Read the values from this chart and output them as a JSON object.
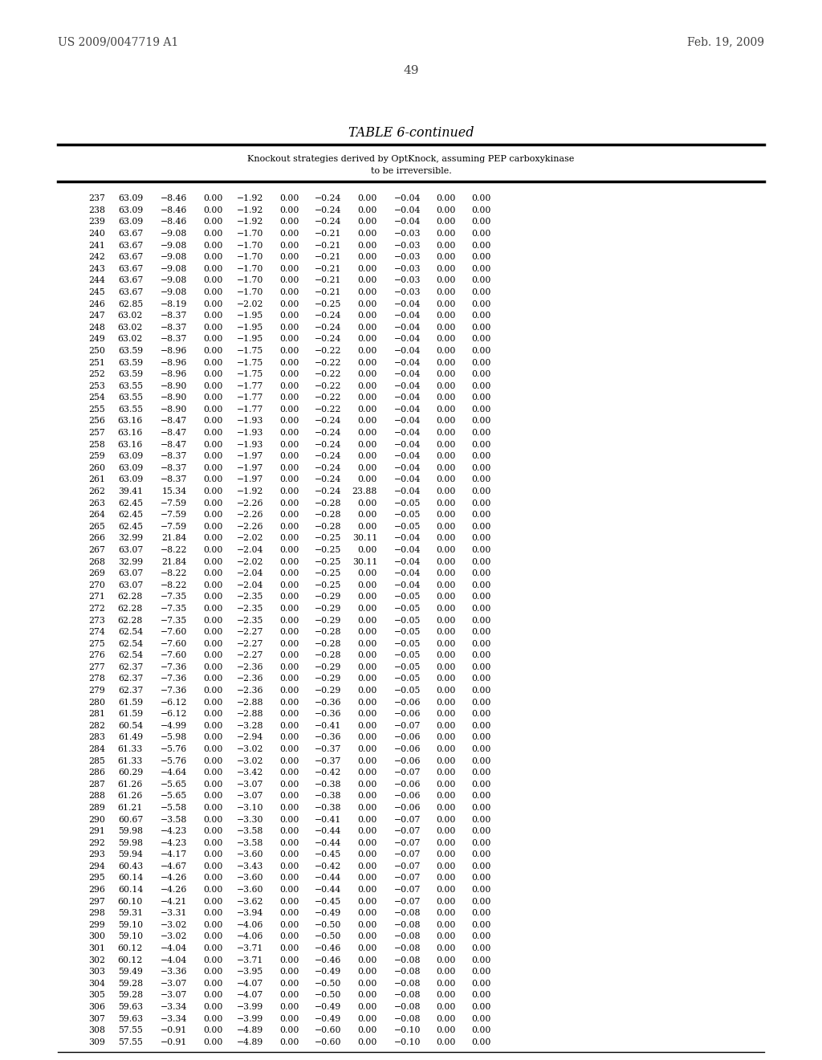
{
  "title": "TABLE 6-continued",
  "subtitle_line1": "Knockout strategies derived by OptKnock, assuming PEP carboxykinase",
  "subtitle_line2": "to be irreversible.",
  "page_number": "49",
  "patent_number": "US 2009/0047719 A1",
  "patent_date": "Feb. 19, 2009",
  "rows": [
    [
      237,
      63.09,
      -8.46,
      0.0,
      -1.92,
      0.0,
      -0.24,
      0.0,
      -0.04,
      0.0,
      0.0
    ],
    [
      238,
      63.09,
      -8.46,
      0.0,
      -1.92,
      0.0,
      -0.24,
      0.0,
      -0.04,
      0.0,
      0.0
    ],
    [
      239,
      63.09,
      -8.46,
      0.0,
      -1.92,
      0.0,
      -0.24,
      0.0,
      -0.04,
      0.0,
      0.0
    ],
    [
      240,
      63.67,
      -9.08,
      0.0,
      -1.7,
      0.0,
      -0.21,
      0.0,
      -0.03,
      0.0,
      0.0
    ],
    [
      241,
      63.67,
      -9.08,
      0.0,
      -1.7,
      0.0,
      -0.21,
      0.0,
      -0.03,
      0.0,
      0.0
    ],
    [
      242,
      63.67,
      -9.08,
      0.0,
      -1.7,
      0.0,
      -0.21,
      0.0,
      -0.03,
      0.0,
      0.0
    ],
    [
      243,
      63.67,
      -9.08,
      0.0,
      -1.7,
      0.0,
      -0.21,
      0.0,
      -0.03,
      0.0,
      0.0
    ],
    [
      244,
      63.67,
      -9.08,
      0.0,
      -1.7,
      0.0,
      -0.21,
      0.0,
      -0.03,
      0.0,
      0.0
    ],
    [
      245,
      63.67,
      -9.08,
      0.0,
      -1.7,
      0.0,
      -0.21,
      0.0,
      -0.03,
      0.0,
      0.0
    ],
    [
      246,
      62.85,
      -8.19,
      0.0,
      -2.02,
      0.0,
      -0.25,
      0.0,
      -0.04,
      0.0,
      0.0
    ],
    [
      247,
      63.02,
      -8.37,
      0.0,
      -1.95,
      0.0,
      -0.24,
      0.0,
      -0.04,
      0.0,
      0.0
    ],
    [
      248,
      63.02,
      -8.37,
      0.0,
      -1.95,
      0.0,
      -0.24,
      0.0,
      -0.04,
      0.0,
      0.0
    ],
    [
      249,
      63.02,
      -8.37,
      0.0,
      -1.95,
      0.0,
      -0.24,
      0.0,
      -0.04,
      0.0,
      0.0
    ],
    [
      250,
      63.59,
      -8.96,
      0.0,
      -1.75,
      0.0,
      -0.22,
      0.0,
      -0.04,
      0.0,
      0.0
    ],
    [
      251,
      63.59,
      -8.96,
      0.0,
      -1.75,
      0.0,
      -0.22,
      0.0,
      -0.04,
      0.0,
      0.0
    ],
    [
      252,
      63.59,
      -8.96,
      0.0,
      -1.75,
      0.0,
      -0.22,
      0.0,
      -0.04,
      0.0,
      0.0
    ],
    [
      253,
      63.55,
      -8.9,
      0.0,
      -1.77,
      0.0,
      -0.22,
      0.0,
      -0.04,
      0.0,
      0.0
    ],
    [
      254,
      63.55,
      -8.9,
      0.0,
      -1.77,
      0.0,
      -0.22,
      0.0,
      -0.04,
      0.0,
      0.0
    ],
    [
      255,
      63.55,
      -8.9,
      0.0,
      -1.77,
      0.0,
      -0.22,
      0.0,
      -0.04,
      0.0,
      0.0
    ],
    [
      256,
      63.16,
      -8.47,
      0.0,
      -1.93,
      0.0,
      -0.24,
      0.0,
      -0.04,
      0.0,
      0.0
    ],
    [
      257,
      63.16,
      -8.47,
      0.0,
      -1.93,
      0.0,
      -0.24,
      0.0,
      -0.04,
      0.0,
      0.0
    ],
    [
      258,
      63.16,
      -8.47,
      0.0,
      -1.93,
      0.0,
      -0.24,
      0.0,
      -0.04,
      0.0,
      0.0
    ],
    [
      259,
      63.09,
      -8.37,
      0.0,
      -1.97,
      0.0,
      -0.24,
      0.0,
      -0.04,
      0.0,
      0.0
    ],
    [
      260,
      63.09,
      -8.37,
      0.0,
      -1.97,
      0.0,
      -0.24,
      0.0,
      -0.04,
      0.0,
      0.0
    ],
    [
      261,
      63.09,
      -8.37,
      0.0,
      -1.97,
      0.0,
      -0.24,
      0.0,
      -0.04,
      0.0,
      0.0
    ],
    [
      262,
      39.41,
      15.34,
      0.0,
      -1.92,
      0.0,
      -0.24,
      23.88,
      -0.04,
      0.0,
      0.0
    ],
    [
      263,
      62.45,
      -7.59,
      0.0,
      -2.26,
      0.0,
      -0.28,
      0.0,
      -0.05,
      0.0,
      0.0
    ],
    [
      264,
      62.45,
      -7.59,
      0.0,
      -2.26,
      0.0,
      -0.28,
      0.0,
      -0.05,
      0.0,
      0.0
    ],
    [
      265,
      62.45,
      -7.59,
      0.0,
      -2.26,
      0.0,
      -0.28,
      0.0,
      -0.05,
      0.0,
      0.0
    ],
    [
      266,
      32.99,
      21.84,
      0.0,
      -2.02,
      0.0,
      -0.25,
      30.11,
      -0.04,
      0.0,
      0.0
    ],
    [
      267,
      63.07,
      -8.22,
      0.0,
      -2.04,
      0.0,
      -0.25,
      0.0,
      -0.04,
      0.0,
      0.0
    ],
    [
      268,
      32.99,
      21.84,
      0.0,
      -2.02,
      0.0,
      -0.25,
      30.11,
      -0.04,
      0.0,
      0.0
    ],
    [
      269,
      63.07,
      -8.22,
      0.0,
      -2.04,
      0.0,
      -0.25,
      0.0,
      -0.04,
      0.0,
      0.0
    ],
    [
      270,
      63.07,
      -8.22,
      0.0,
      -2.04,
      0.0,
      -0.25,
      0.0,
      -0.04,
      0.0,
      0.0
    ],
    [
      271,
      62.28,
      -7.35,
      0.0,
      -2.35,
      0.0,
      -0.29,
      0.0,
      -0.05,
      0.0,
      0.0
    ],
    [
      272,
      62.28,
      -7.35,
      0.0,
      -2.35,
      0.0,
      -0.29,
      0.0,
      -0.05,
      0.0,
      0.0
    ],
    [
      273,
      62.28,
      -7.35,
      0.0,
      -2.35,
      0.0,
      -0.29,
      0.0,
      -0.05,
      0.0,
      0.0
    ],
    [
      274,
      62.54,
      -7.6,
      0.0,
      -2.27,
      0.0,
      -0.28,
      0.0,
      -0.05,
      0.0,
      0.0
    ],
    [
      275,
      62.54,
      -7.6,
      0.0,
      -2.27,
      0.0,
      -0.28,
      0.0,
      -0.05,
      0.0,
      0.0
    ],
    [
      276,
      62.54,
      -7.6,
      0.0,
      -2.27,
      0.0,
      -0.28,
      0.0,
      -0.05,
      0.0,
      0.0
    ],
    [
      277,
      62.37,
      -7.36,
      0.0,
      -2.36,
      0.0,
      -0.29,
      0.0,
      -0.05,
      0.0,
      0.0
    ],
    [
      278,
      62.37,
      -7.36,
      0.0,
      -2.36,
      0.0,
      -0.29,
      0.0,
      -0.05,
      0.0,
      0.0
    ],
    [
      279,
      62.37,
      -7.36,
      0.0,
      -2.36,
      0.0,
      -0.29,
      0.0,
      -0.05,
      0.0,
      0.0
    ],
    [
      280,
      61.59,
      -6.12,
      0.0,
      -2.88,
      0.0,
      -0.36,
      0.0,
      -0.06,
      0.0,
      0.0
    ],
    [
      281,
      61.59,
      -6.12,
      0.0,
      -2.88,
      0.0,
      -0.36,
      0.0,
      -0.06,
      0.0,
      0.0
    ],
    [
      282,
      60.54,
      -4.99,
      0.0,
      -3.28,
      0.0,
      -0.41,
      0.0,
      -0.07,
      0.0,
      0.0
    ],
    [
      283,
      61.49,
      -5.98,
      0.0,
      -2.94,
      0.0,
      -0.36,
      0.0,
      -0.06,
      0.0,
      0.0
    ],
    [
      284,
      61.33,
      -5.76,
      0.0,
      -3.02,
      0.0,
      -0.37,
      0.0,
      -0.06,
      0.0,
      0.0
    ],
    [
      285,
      61.33,
      -5.76,
      0.0,
      -3.02,
      0.0,
      -0.37,
      0.0,
      -0.06,
      0.0,
      0.0
    ],
    [
      286,
      60.29,
      -4.64,
      0.0,
      -3.42,
      0.0,
      -0.42,
      0.0,
      -0.07,
      0.0,
      0.0
    ],
    [
      287,
      61.26,
      -5.65,
      0.0,
      -3.07,
      0.0,
      -0.38,
      0.0,
      -0.06,
      0.0,
      0.0
    ],
    [
      288,
      61.26,
      -5.65,
      0.0,
      -3.07,
      0.0,
      -0.38,
      0.0,
      -0.06,
      0.0,
      0.0
    ],
    [
      289,
      61.21,
      -5.58,
      0.0,
      -3.1,
      0.0,
      -0.38,
      0.0,
      -0.06,
      0.0,
      0.0
    ],
    [
      290,
      60.67,
      -3.58,
      0.0,
      -3.3,
      0.0,
      -0.41,
      0.0,
      -0.07,
      0.0,
      0.0
    ],
    [
      291,
      59.98,
      -4.23,
      0.0,
      -3.58,
      0.0,
      -0.44,
      0.0,
      -0.07,
      0.0,
      0.0
    ],
    [
      292,
      59.98,
      -4.23,
      0.0,
      -3.58,
      0.0,
      -0.44,
      0.0,
      -0.07,
      0.0,
      0.0
    ],
    [
      293,
      59.94,
      -4.17,
      0.0,
      -3.6,
      0.0,
      -0.45,
      0.0,
      -0.07,
      0.0,
      0.0
    ],
    [
      294,
      60.43,
      -4.67,
      0.0,
      -3.43,
      0.0,
      -0.42,
      0.0,
      -0.07,
      0.0,
      0.0
    ],
    [
      295,
      60.14,
      -4.26,
      0.0,
      -3.6,
      0.0,
      -0.44,
      0.0,
      -0.07,
      0.0,
      0.0
    ],
    [
      296,
      60.14,
      -4.26,
      0.0,
      -3.6,
      0.0,
      -0.44,
      0.0,
      -0.07,
      0.0,
      0.0
    ],
    [
      297,
      60.1,
      -4.21,
      0.0,
      -3.62,
      0.0,
      -0.45,
      0.0,
      -0.07,
      0.0,
      0.0
    ],
    [
      298,
      59.31,
      -3.31,
      0.0,
      -3.94,
      0.0,
      -0.49,
      0.0,
      -0.08,
      0.0,
      0.0
    ],
    [
      299,
      59.1,
      -3.02,
      0.0,
      -4.06,
      0.0,
      -0.5,
      0.0,
      -0.08,
      0.0,
      0.0
    ],
    [
      300,
      59.1,
      -3.02,
      0.0,
      -4.06,
      0.0,
      -0.5,
      0.0,
      -0.08,
      0.0,
      0.0
    ],
    [
      301,
      60.12,
      -4.04,
      0.0,
      -3.71,
      0.0,
      -0.46,
      0.0,
      -0.08,
      0.0,
      0.0
    ],
    [
      302,
      60.12,
      -4.04,
      0.0,
      -3.71,
      0.0,
      -0.46,
      0.0,
      -0.08,
      0.0,
      0.0
    ],
    [
      303,
      59.49,
      -3.36,
      0.0,
      -3.95,
      0.0,
      -0.49,
      0.0,
      -0.08,
      0.0,
      0.0
    ],
    [
      304,
      59.28,
      -3.07,
      0.0,
      -4.07,
      0.0,
      -0.5,
      0.0,
      -0.08,
      0.0,
      0.0
    ],
    [
      305,
      59.28,
      -3.07,
      0.0,
      -4.07,
      0.0,
      -0.5,
      0.0,
      -0.08,
      0.0,
      0.0
    ],
    [
      306,
      59.63,
      -3.34,
      0.0,
      -3.99,
      0.0,
      -0.49,
      0.0,
      -0.08,
      0.0,
      0.0
    ],
    [
      307,
      59.63,
      -3.34,
      0.0,
      -3.99,
      0.0,
      -0.49,
      0.0,
      -0.08,
      0.0,
      0.0
    ],
    [
      308,
      57.55,
      -0.91,
      0.0,
      -4.89,
      0.0,
      -0.6,
      0.0,
      -0.1,
      0.0,
      0.0
    ],
    [
      309,
      57.55,
      -0.91,
      0.0,
      -4.89,
      0.0,
      -0.6,
      0.0,
      -0.1,
      0.0,
      0.0
    ]
  ]
}
